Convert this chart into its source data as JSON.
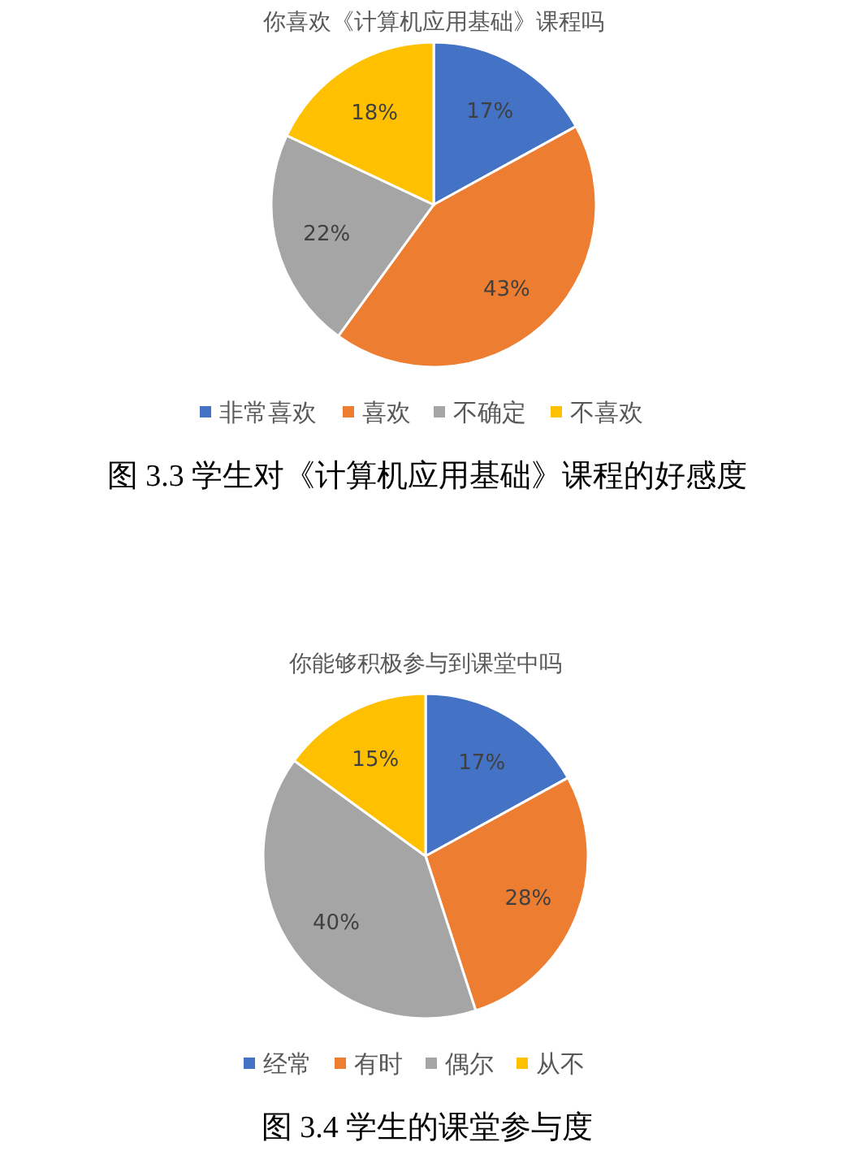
{
  "chart_data": [
    {
      "type": "pie",
      "title": "你喜欢《计算机应用基础》课程吗",
      "categories": [
        "非常喜欢",
        "喜欢",
        "不确定",
        "不喜欢"
      ],
      "values": [
        17,
        43,
        22,
        18
      ],
      "value_labels": [
        "17%",
        "43%",
        "22%",
        "18%"
      ],
      "colors": [
        "#4472c4",
        "#ed7d31",
        "#a5a5a5",
        "#ffc000"
      ],
      "legend": "bottom",
      "annotations": [
        "图 3.3  学生对《计算机应用基础》课程的好感度"
      ]
    },
    {
      "type": "pie",
      "title": "你能够积极参与到课堂中吗",
      "categories": [
        "经常",
        "有时",
        "偶尔",
        "从不"
      ],
      "values": [
        17,
        28,
        40,
        15
      ],
      "value_labels": [
        "17%",
        "28%",
        "40%",
        "15%"
      ],
      "colors": [
        "#4472c4",
        "#ed7d31",
        "#a5a5a5",
        "#ffc000"
      ],
      "legend": "bottom",
      "annotations": [
        "图 3.4  学生的课堂参与度"
      ]
    }
  ]
}
